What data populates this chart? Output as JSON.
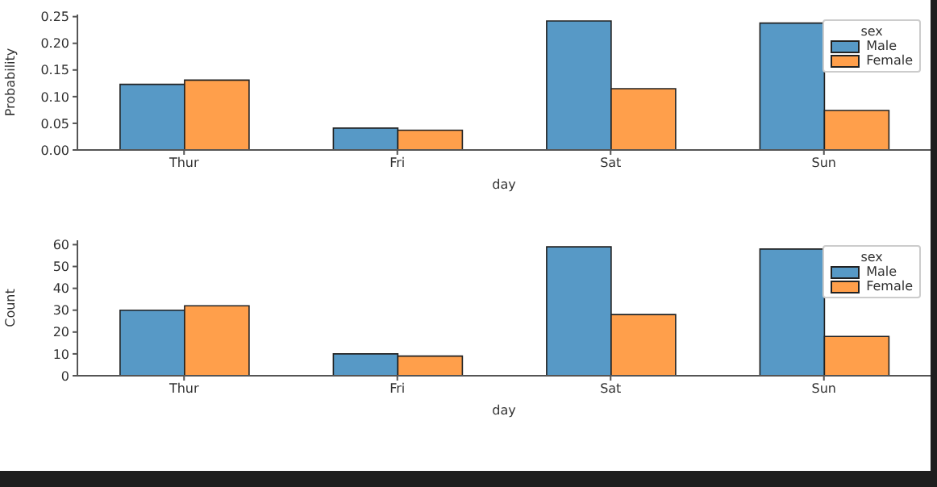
{
  "chart_data": [
    {
      "type": "bar",
      "xlabel": "day",
      "ylabel": "Probability",
      "legend_title": "sex",
      "legend": "top right",
      "grid": false,
      "categories": [
        "Thur",
        "Fri",
        "Sat",
        "Sun"
      ],
      "ylim": [
        0,
        0.254
      ],
      "yticks": [
        {
          "value": 0,
          "label": "0.00"
        },
        {
          "value": 0.05,
          "label": "0.05"
        },
        {
          "value": 0.1,
          "label": "0.10"
        },
        {
          "value": 0.15,
          "label": "0.15"
        },
        {
          "value": 0.2,
          "label": "0.20"
        },
        {
          "value": 0.25,
          "label": "0.25"
        }
      ],
      "series": [
        {
          "name": "Male",
          "color": "#5799c6",
          "values": [
            0.123,
            0.041,
            0.242,
            0.238
          ]
        },
        {
          "name": "Female",
          "color": "#ff9f4b",
          "values": [
            0.131,
            0.037,
            0.115,
            0.074
          ]
        }
      ]
    },
    {
      "type": "bar",
      "xlabel": "day",
      "ylabel": "Count",
      "legend_title": "sex",
      "legend": "top right",
      "grid": false,
      "categories": [
        "Thur",
        "Fri",
        "Sat",
        "Sun"
      ],
      "ylim": [
        0,
        62
      ],
      "yticks": [
        0,
        10,
        20,
        30,
        40,
        50,
        60
      ],
      "series": [
        {
          "name": "Male",
          "color": "#5799c6",
          "values": [
            30,
            10,
            59,
            58
          ]
        },
        {
          "name": "Female",
          "color": "#ff9f4b",
          "values": [
            32,
            9,
            28,
            18
          ]
        }
      ]
    }
  ]
}
